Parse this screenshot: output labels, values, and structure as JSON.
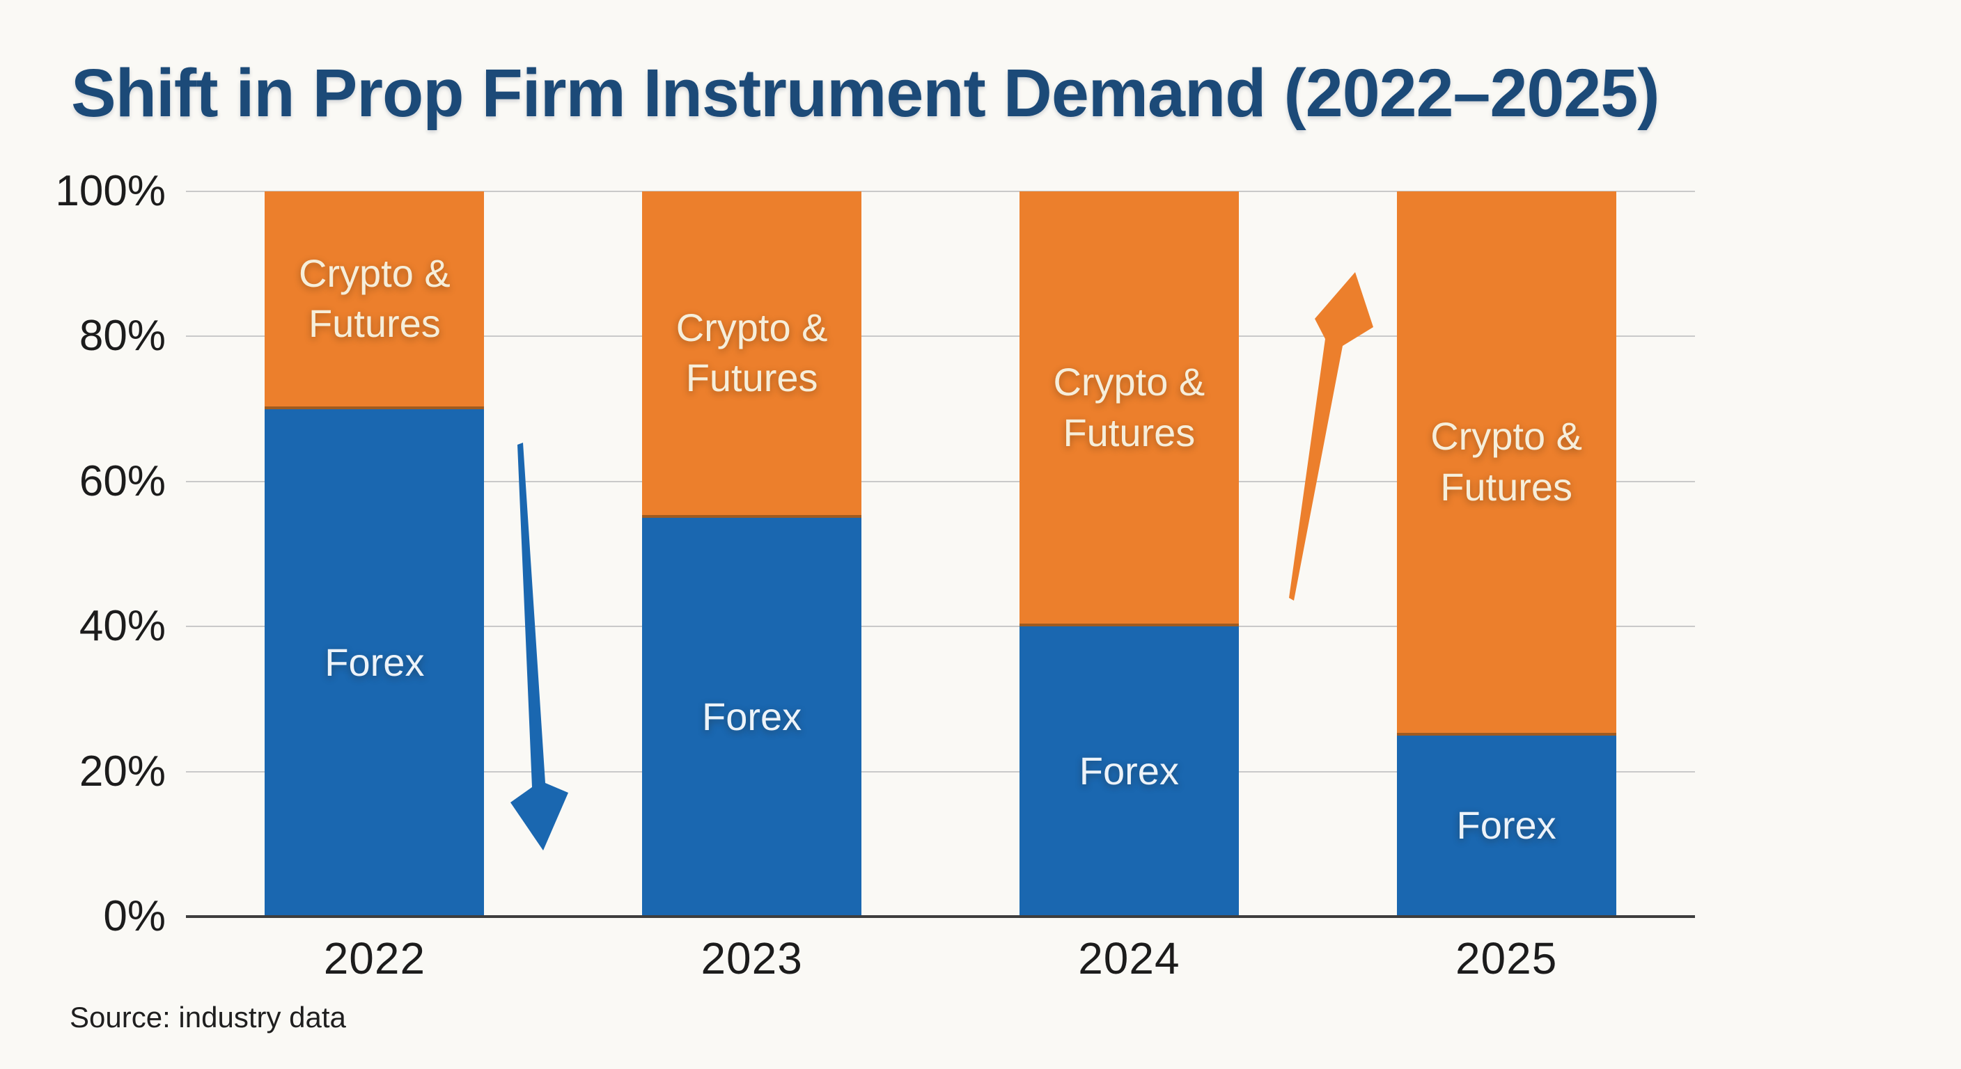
{
  "title": "Shift in Prop Firm Instrument Demand (2022–2025)",
  "source": "Source: industry data",
  "colors": {
    "background": "#FAF9F5",
    "title": "#1C4A78",
    "forex": "#1A67B0",
    "crypto": "#EC7F2C",
    "gridline": "#C9C9C9",
    "axis": "#3E3E3E",
    "axis_text": "#1C1C1C",
    "forex_label": "#EDF3F9",
    "crypto_label": "#F6EEDA"
  },
  "chart_data": {
    "type": "bar",
    "stacked": true,
    "title": "Shift in Prop Firm Instrument Demand (2022–2025)",
    "categories": [
      "2022",
      "2023",
      "2024",
      "2025"
    ],
    "series": [
      {
        "name": "Forex",
        "color_key": "forex",
        "label_lines": [
          "Forex"
        ],
        "values": [
          70,
          55,
          40,
          25
        ]
      },
      {
        "name": "Crypto & Futures",
        "color_key": "crypto",
        "label_lines": [
          "Crypto &",
          "Futures"
        ],
        "values": [
          30,
          45,
          60,
          75
        ]
      }
    ],
    "xlabel": "",
    "ylabel": "",
    "ylim": [
      0,
      100
    ],
    "y_ticks": [
      "0%",
      "20%",
      "40%",
      "60%",
      "80%",
      "100%"
    ],
    "grid": true,
    "legend": "none",
    "annotations": [
      {
        "name": "down-arrow",
        "direction": "down",
        "color_key": "forex",
        "between": [
          "2022",
          "2023"
        ]
      },
      {
        "name": "up-arrow",
        "direction": "up",
        "color_key": "crypto",
        "between": [
          "2024",
          "2025"
        ]
      }
    ]
  }
}
